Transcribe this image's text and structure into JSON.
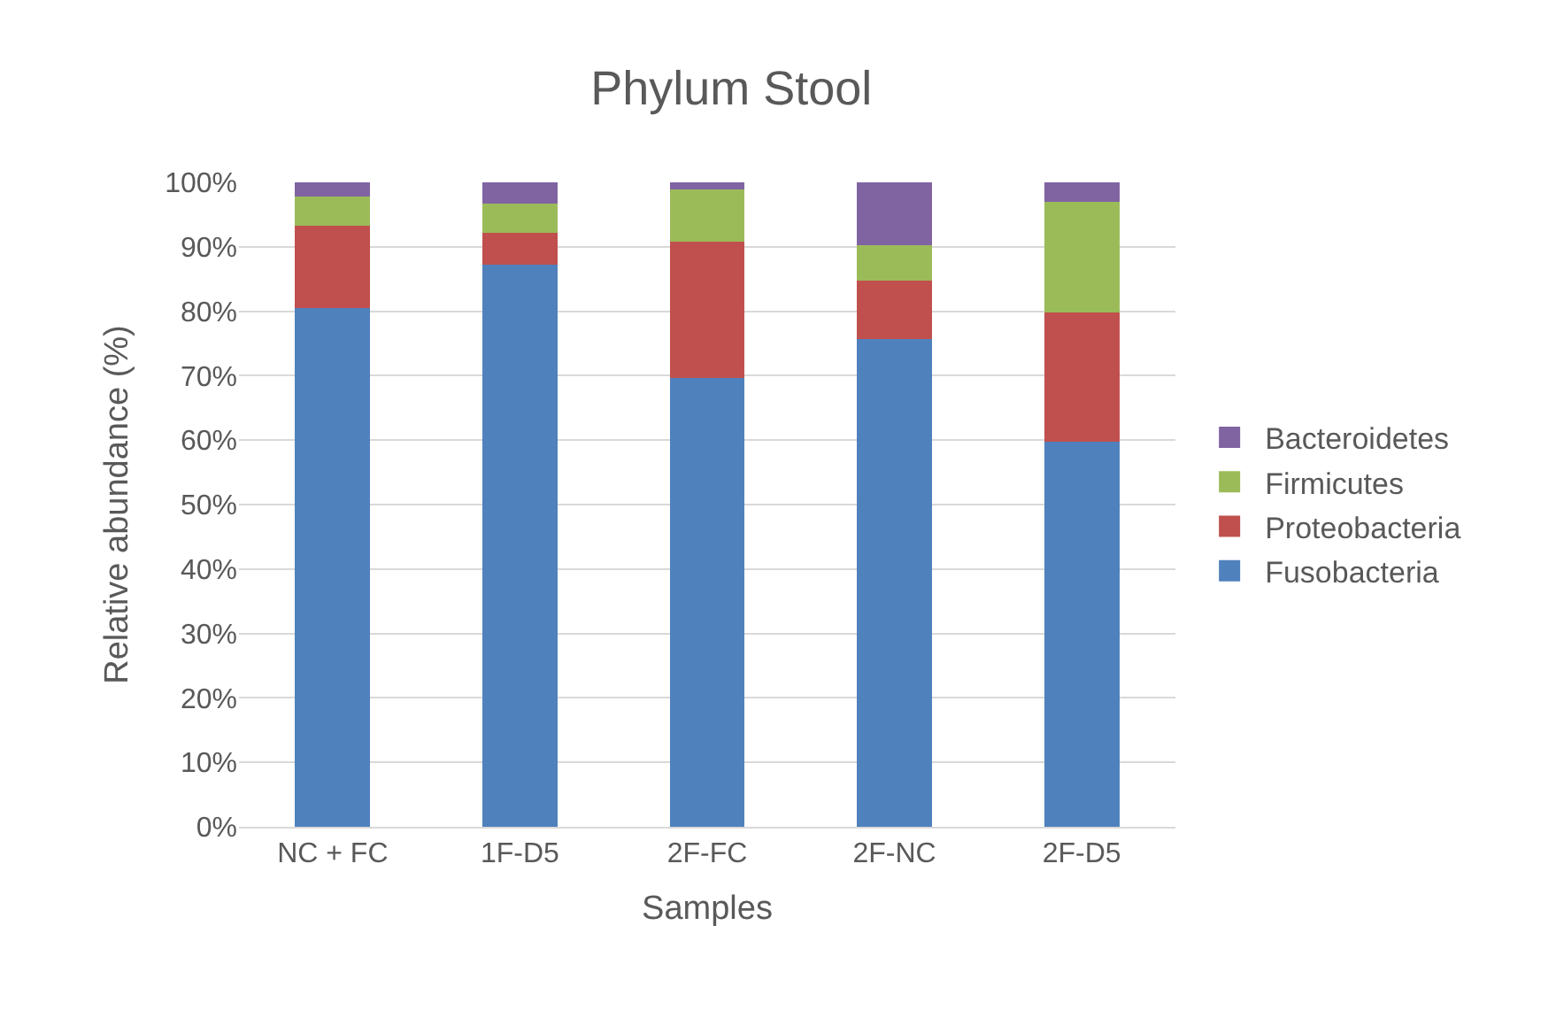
{
  "chart_data": {
    "type": "bar",
    "stacked": true,
    "title": "Phylum Stool",
    "xlabel": "Samples",
    "ylabel": "Relative abundance (%)",
    "categories": [
      "NC + FC",
      "1F-D5",
      "2F-FC",
      "2F-NC",
      "2F-D5"
    ],
    "series": [
      {
        "name": "Fusobacteria",
        "color": "#4f81bd",
        "values": [
          80.5,
          87.2,
          69.6,
          75.7,
          59.8
        ]
      },
      {
        "name": "Proteobacteria",
        "color": "#c0504d",
        "values": [
          12.8,
          5.0,
          21.2,
          9.0,
          20.0
        ]
      },
      {
        "name": "Firmicutes",
        "color": "#9bbb59",
        "values": [
          4.5,
          4.5,
          8.1,
          5.6,
          17.2
        ]
      },
      {
        "name": "Bacteroidetes",
        "color": "#8064a2",
        "values": [
          2.2,
          3.3,
          1.1,
          9.7,
          3.0
        ]
      }
    ],
    "ylim": [
      0,
      100
    ],
    "yticks": [
      {
        "value": 0,
        "label": "0%"
      },
      {
        "value": 10,
        "label": "10%"
      },
      {
        "value": 20,
        "label": "20%"
      },
      {
        "value": 30,
        "label": "30%"
      },
      {
        "value": 40,
        "label": "40%"
      },
      {
        "value": 50,
        "label": "50%"
      },
      {
        "value": 60,
        "label": "60%"
      },
      {
        "value": 70,
        "label": "70%"
      },
      {
        "value": 80,
        "label": "80%"
      },
      {
        "value": 90,
        "label": "90%"
      },
      {
        "value": 100,
        "label": "100%"
      }
    ],
    "grid": "y",
    "legend": "right"
  }
}
